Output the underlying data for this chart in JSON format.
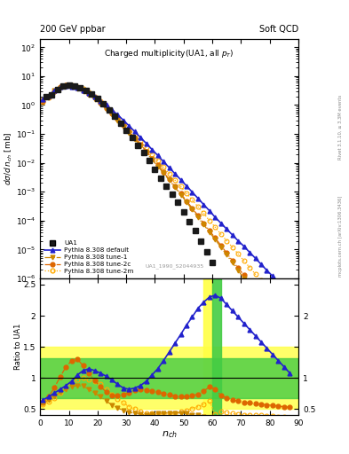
{
  "title_left": "200 GeV ppbar",
  "title_right": "Soft QCD",
  "plot_title": "Charged multiplicity(UA1, all $p_T$)",
  "xlabel": "$n_{ch}$",
  "ylabel_main": "$d\\sigma/d\\,n_{ch}$ [mb]",
  "ylabel_ratio": "Ratio to UA1",
  "watermark": "UA1_1990_S2044935",
  "right_label_top": "Rivet 3.1.10, ≥ 3.3M events",
  "right_label_bot": "mcplots.cern.ch [arXiv:1306.3436]",
  "UA1_x": [
    2,
    4,
    6,
    8,
    10,
    12,
    14,
    16,
    18,
    20,
    22,
    24,
    26,
    28,
    30,
    32,
    34,
    36,
    38,
    40,
    42,
    44,
    46,
    48,
    50,
    52,
    54,
    56,
    58,
    60
  ],
  "UA1_y": [
    1.9,
    2.3,
    3.5,
    4.5,
    4.8,
    4.5,
    4.0,
    3.2,
    2.4,
    1.7,
    1.1,
    0.7,
    0.42,
    0.24,
    0.13,
    0.075,
    0.04,
    0.022,
    0.012,
    0.006,
    0.003,
    0.0016,
    0.00085,
    0.00042,
    0.0002,
    9.5e-05,
    4.5e-05,
    2e-05,
    8.5e-06,
    3.5e-06
  ],
  "pythia_default_x": [
    1,
    3,
    5,
    7,
    9,
    11,
    13,
    15,
    17,
    19,
    21,
    23,
    25,
    27,
    29,
    31,
    33,
    35,
    37,
    39,
    41,
    43,
    45,
    47,
    49,
    51,
    53,
    55,
    57,
    59,
    61,
    63,
    65,
    67,
    69,
    71,
    73,
    75,
    77,
    79,
    81,
    83,
    85,
    87
  ],
  "pythia_default_y": [
    1.6,
    2.1,
    3.2,
    4.2,
    4.6,
    4.4,
    3.9,
    3.3,
    2.6,
    2.0,
    1.4,
    1.0,
    0.68,
    0.46,
    0.3,
    0.19,
    0.12,
    0.075,
    0.047,
    0.029,
    0.018,
    0.011,
    0.0068,
    0.0042,
    0.0026,
    0.0016,
    0.00097,
    0.00059,
    0.00036,
    0.00022,
    0.00013,
    8.2e-05,
    5.1e-05,
    3.2e-05,
    2e-05,
    1.3e-05,
    8e-06,
    5e-06,
    3.1e-06,
    1.9e-06,
    1.2e-06,
    7.4e-07,
    4.5e-07,
    2.7e-07
  ],
  "tune1_x": [
    1,
    3,
    5,
    7,
    9,
    11,
    13,
    15,
    17,
    19,
    21,
    23,
    25,
    27,
    29,
    31,
    33,
    35,
    37,
    39,
    41,
    43,
    45,
    47,
    49,
    51,
    53,
    55,
    57,
    59,
    61,
    63,
    65,
    67,
    69,
    71,
    73,
    75,
    77,
    79,
    81,
    83,
    85,
    87
  ],
  "tune1_y": [
    1.5,
    2.0,
    3.1,
    4.1,
    4.5,
    4.2,
    3.6,
    2.9,
    2.2,
    1.6,
    1.1,
    0.72,
    0.46,
    0.29,
    0.18,
    0.11,
    0.065,
    0.038,
    0.022,
    0.013,
    0.0076,
    0.0044,
    0.0025,
    0.0014,
    0.00079,
    0.00044,
    0.00024,
    0.00013,
    7.2e-05,
    4e-05,
    2.2e-05,
    1.2e-05,
    6.5e-06,
    3.5e-06,
    1.9e-06,
    1e-06,
    5.5e-07,
    3e-07,
    1.6e-07,
    8.8e-08,
    4.8e-08,
    2.6e-08,
    1.4e-08,
    7.8e-09
  ],
  "tune2c_x": [
    1,
    3,
    5,
    7,
    9,
    11,
    13,
    15,
    17,
    19,
    21,
    23,
    25,
    27,
    29,
    31,
    33,
    35,
    37,
    39,
    41,
    43,
    45,
    47,
    49,
    51,
    53,
    55,
    57,
    59,
    61,
    63,
    65,
    67,
    69,
    71,
    73,
    75,
    77,
    79,
    81,
    83,
    85,
    87
  ],
  "tune2c_y": [
    1.4,
    1.9,
    3.0,
    4.2,
    4.8,
    4.7,
    4.1,
    3.3,
    2.5,
    1.8,
    1.2,
    0.8,
    0.52,
    0.33,
    0.2,
    0.12,
    0.073,
    0.043,
    0.025,
    0.014,
    0.0082,
    0.0047,
    0.0027,
    0.0015,
    0.00086,
    0.00048,
    0.00027,
    0.00015,
    8.2e-05,
    4.5e-05,
    2.5e-05,
    1.4e-05,
    7.5e-06,
    4.1e-06,
    2.3e-06,
    1.3e-06,
    7e-07,
    3.9e-07,
    2.2e-07,
    1.2e-07,
    6.9e-08,
    3.8e-08,
    2.1e-08,
    1.2e-08
  ],
  "tune2m_x": [
    1,
    3,
    5,
    7,
    9,
    11,
    13,
    15,
    17,
    19,
    21,
    23,
    25,
    27,
    29,
    31,
    33,
    35,
    37,
    39,
    41,
    43,
    45,
    47,
    49,
    51,
    53,
    55,
    57,
    59,
    61,
    63,
    65,
    67,
    69,
    71,
    73,
    75,
    77,
    79,
    81,
    83,
    85,
    87
  ],
  "tune2m_y": [
    1.3,
    1.85,
    3.0,
    4.3,
    5.0,
    4.9,
    4.4,
    3.6,
    2.7,
    1.95,
    1.35,
    0.9,
    0.59,
    0.38,
    0.24,
    0.15,
    0.092,
    0.056,
    0.034,
    0.02,
    0.012,
    0.0072,
    0.0043,
    0.0025,
    0.0015,
    0.00088,
    0.00052,
    0.0003,
    0.00018,
    0.0001,
    5.9e-05,
    3.4e-05,
    2e-05,
    1.2e-05,
    7e-06,
    4.1e-06,
    2.4e-06,
    1.4e-06,
    8.4e-07,
    5e-07,
    2.9e-07,
    1.7e-07,
    1e-07,
    5.9e-08
  ],
  "ratio_x": [
    1,
    3,
    5,
    7,
    9,
    11,
    13,
    15,
    17,
    19,
    21,
    23,
    25,
    27,
    29,
    31,
    33,
    35,
    37,
    39,
    41,
    43,
    45,
    47,
    49,
    51,
    53,
    55,
    57,
    59,
    61,
    63,
    65,
    67,
    69,
    71,
    73,
    75,
    77,
    79,
    81,
    83,
    85,
    87
  ],
  "ratio_default_y": [
    0.65,
    0.7,
    0.76,
    0.82,
    0.88,
    0.95,
    1.05,
    1.12,
    1.15,
    1.12,
    1.08,
    1.03,
    0.97,
    0.9,
    0.84,
    0.82,
    0.84,
    0.88,
    0.95,
    1.05,
    1.15,
    1.28,
    1.42,
    1.56,
    1.7,
    1.85,
    1.98,
    2.12,
    2.22,
    2.3,
    2.33,
    2.28,
    2.18,
    2.08,
    1.98,
    1.88,
    1.78,
    1.68,
    1.58,
    1.48,
    1.38,
    1.28,
    1.18,
    1.08
  ],
  "ratio_tune2c_y": [
    0.6,
    0.7,
    0.85,
    1.02,
    1.18,
    1.28,
    1.3,
    1.2,
    1.08,
    0.96,
    0.86,
    0.78,
    0.72,
    0.72,
    0.74,
    0.76,
    0.8,
    0.82,
    0.81,
    0.79,
    0.77,
    0.75,
    0.73,
    0.71,
    0.7,
    0.7,
    0.72,
    0.74,
    0.79,
    0.86,
    0.82,
    0.72,
    0.68,
    0.65,
    0.63,
    0.61,
    0.6,
    0.59,
    0.58,
    0.57,
    0.56,
    0.55,
    0.54,
    0.53
  ],
  "ratio_tune1_y": [
    0.6,
    0.65,
    0.71,
    0.77,
    0.82,
    0.86,
    0.88,
    0.87,
    0.82,
    0.76,
    0.7,
    0.63,
    0.57,
    0.52,
    0.48,
    0.45,
    0.43,
    0.42,
    0.41,
    0.42,
    0.43,
    0.44,
    0.44,
    0.44,
    0.44,
    0.43,
    0.41,
    0.4,
    0.38,
    0.37,
    0.35,
    0.33,
    0.32,
    0.31,
    0.3,
    0.29,
    0.28,
    0.28,
    0.27,
    0.27,
    0.27,
    0.26,
    0.26,
    0.25
  ],
  "ratio_tune2m_y": [
    0.58,
    0.62,
    0.68,
    0.76,
    0.85,
    0.92,
    0.98,
    1.0,
    0.98,
    0.95,
    0.9,
    0.82,
    0.74,
    0.67,
    0.6,
    0.54,
    0.5,
    0.47,
    0.44,
    0.43,
    0.42,
    0.42,
    0.43,
    0.44,
    0.46,
    0.48,
    0.51,
    0.54,
    0.58,
    0.63,
    0.42,
    0.46,
    0.45,
    0.43,
    0.42,
    0.41,
    0.41,
    0.4,
    0.4,
    0.39,
    0.39,
    0.38,
    0.38,
    0.37
  ],
  "color_UA1": "#1a1a1a",
  "color_default": "#2222cc",
  "color_tune1": "#cc8800",
  "color_tune2c": "#dd6600",
  "color_tune2m": "#ffaa00",
  "color_band_yellow": "#ffff44",
  "color_band_green": "#44cc44",
  "xlim": [
    0,
    90
  ],
  "ylim_main": [
    1e-06,
    200
  ],
  "ylim_ratio": [
    0.4,
    2.6
  ],
  "ratio_yticks": [
    0.5,
    1.0,
    1.5,
    2.0,
    2.5
  ],
  "ratio_ytick_labels_left": [
    "0.5",
    "1",
    "1.5",
    "2",
    "2.5"
  ],
  "ratio_ytick_labels_right": [
    "0.5",
    "1",
    "",
    "2",
    ""
  ]
}
